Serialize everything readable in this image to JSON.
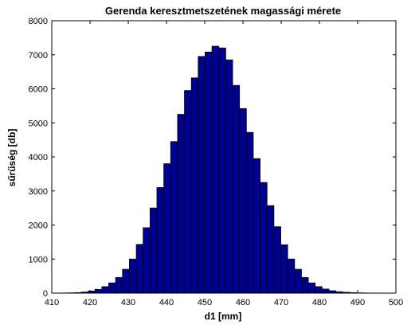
{
  "chart_data": {
    "type": "bar",
    "title": "Gerenda keresztmetszetének magassági mérete",
    "xlabel": "d1 [mm]",
    "ylabel": "sűrűség [db]",
    "xlim": [
      410,
      500
    ],
    "ylim": [
      0,
      8000
    ],
    "xticks": [
      410,
      420,
      430,
      440,
      450,
      460,
      470,
      480,
      490,
      500
    ],
    "yticks": [
      0,
      1000,
      2000,
      3000,
      4000,
      5000,
      6000,
      7000,
      8000
    ],
    "grid": false,
    "legend": "none",
    "bar_color": "#00008f",
    "edge_color": "#000000",
    "bin_edges_start": 410.5,
    "bin_width": 1.8,
    "values": [
      2,
      4,
      8,
      15,
      30,
      60,
      110,
      190,
      300,
      460,
      700,
      1000,
      1430,
      1920,
      2500,
      3100,
      3800,
      4450,
      5250,
      5950,
      6320,
      6950,
      7080,
      7250,
      7200,
      6850,
      6100,
      5420,
      4720,
      3950,
      3250,
      2570,
      1950,
      1420,
      1000,
      700,
      460,
      300,
      190,
      120,
      70,
      40,
      25,
      15,
      8,
      4,
      2,
      1
    ]
  }
}
